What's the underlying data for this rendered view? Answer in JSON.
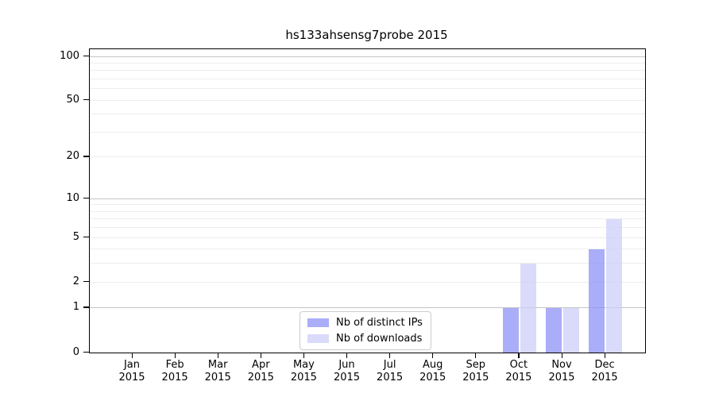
{
  "title": "hs133ahsensg7probe 2015",
  "colors": {
    "distinct_ips_bar": "#8e91f6",
    "downloads_bar": "#cecff8",
    "bar_opacity": 0.75,
    "grid_major": "#c4c4c4",
    "grid_minor": "#ededed",
    "axis": "#000000",
    "legend_border": "#cccccc",
    "background": "#ffffff"
  },
  "legend": {
    "items": [
      {
        "label": "Nb of distinct IPs"
      },
      {
        "label": "Nb of downloads"
      }
    ]
  },
  "chart_data": {
    "type": "bar",
    "title": "hs133ahsensg7probe 2015",
    "categories": [
      "Jan",
      "Feb",
      "Mar",
      "Apr",
      "May",
      "Jun",
      "Jul",
      "Aug",
      "Sep",
      "Oct",
      "Nov",
      "Dec"
    ],
    "category_year": "2015",
    "series": [
      {
        "name": "Nb of distinct IPs",
        "color": "#8e91f6",
        "opacity": 0.75,
        "values": [
          0,
          0,
          0,
          0,
          0,
          0,
          0,
          0,
          0,
          1,
          1,
          4
        ]
      },
      {
        "name": "Nb of downloads",
        "color": "#cecff8",
        "opacity": 0.75,
        "values": [
          0,
          0,
          0,
          0,
          0,
          0,
          0,
          0,
          0,
          3,
          1,
          7
        ]
      }
    ],
    "xlabel": "",
    "ylabel": "",
    "yscale": "log1p",
    "ylim": [
      0,
      100
    ],
    "yticks_labeled": [
      0,
      1,
      2,
      5,
      10,
      20,
      50,
      100
    ],
    "ygrid_major": [
      1,
      10,
      100
    ],
    "ygrid_minor": [
      2,
      3,
      4,
      5,
      6,
      7,
      8,
      9,
      20,
      30,
      40,
      50,
      60,
      70,
      80,
      90
    ],
    "grid": "horizontal",
    "legend_position": "bottom-center"
  }
}
